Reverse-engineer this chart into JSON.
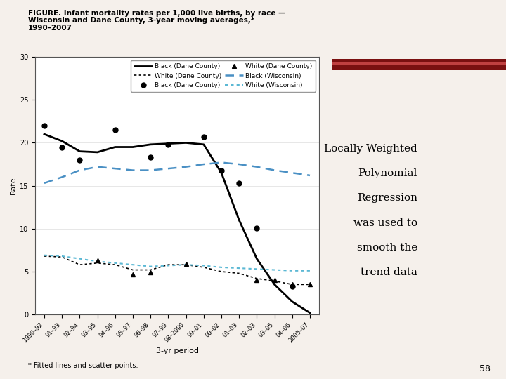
{
  "title_line1": "FIGURE. Infant mortality rates per 1,000 live births, by race —",
  "title_line2": "Wisconsin and Dane County, 3-year moving averages,*",
  "title_line3": "1990–2007",
  "xlabel": "3-yr period",
  "ylabel": "Rate",
  "footnote": "* Fitted lines and scatter points.",
  "page_number": "58",
  "annotation_lines": [
    "Locally Weighted",
    "Polynomial",
    "Regression",
    "was used to",
    "smooth the",
    "trend data"
  ],
  "xlabels": [
    "1990–92",
    "91–93",
    "92–94",
    "93–95",
    "94–96",
    "95–97",
    "96–98",
    "97–99",
    "98–2000",
    "99–01",
    "00–02",
    "01–03",
    "02–03",
    "03–05",
    "04–06",
    "2005–07"
  ],
  "ylim": [
    0,
    30
  ],
  "yticks": [
    0,
    5,
    10,
    15,
    20,
    25,
    30
  ],
  "black_dane_line": [
    21.0,
    20.2,
    19.0,
    18.9,
    19.5,
    19.5,
    19.8,
    19.9,
    20.0,
    19.8,
    16.5,
    11.0,
    6.5,
    3.5,
    1.5,
    0.2
  ],
  "black_dane_scatter": [
    22.0,
    19.5,
    18.0,
    null,
    21.5,
    null,
    18.3,
    19.8,
    null,
    20.7,
    16.8,
    15.3,
    10.1,
    null,
    3.3,
    null
  ],
  "white_dane_line": [
    6.8,
    6.7,
    5.8,
    6.0,
    5.8,
    5.2,
    5.2,
    5.8,
    5.8,
    5.5,
    5.0,
    4.8,
    4.2,
    3.9,
    3.5,
    3.5
  ],
  "white_dane_scatter": [
    null,
    null,
    null,
    6.3,
    null,
    4.7,
    4.9,
    null,
    5.9,
    null,
    null,
    null,
    4.0,
    4.0,
    3.5,
    3.5
  ],
  "black_wisc_line": [
    15.3,
    16.0,
    16.8,
    17.2,
    17.0,
    16.8,
    16.8,
    17.0,
    17.2,
    17.5,
    17.7,
    17.5,
    17.2,
    16.8,
    16.5,
    16.2
  ],
  "white_wisc_line": [
    6.9,
    6.8,
    6.5,
    6.2,
    6.0,
    5.8,
    5.6,
    5.7,
    5.8,
    5.7,
    5.5,
    5.4,
    5.3,
    5.2,
    5.1,
    5.1
  ],
  "bg_color": "#f5f0eb",
  "plot_bg": "#ffffff",
  "black_color": "#000000",
  "blue_color": "#4a90c4",
  "cyan_color": "#5bb8d4",
  "bar_dark": "#7a1010",
  "bar_light": "#c04040"
}
